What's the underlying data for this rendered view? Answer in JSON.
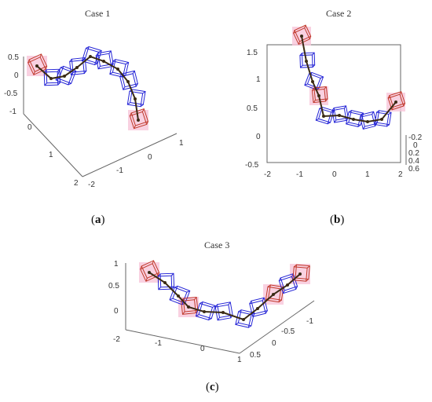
{
  "figure": {
    "panels": [
      {
        "title": "Case 1",
        "label_paren_open": "(",
        "label_letter": "a",
        "label_paren_close": ")",
        "zticks": [
          "0.5",
          "0",
          "-0.5",
          "-1"
        ],
        "xticks": [
          "0",
          "1",
          "2"
        ],
        "yticks": [
          "-2",
          "-1",
          "0",
          "1"
        ]
      },
      {
        "title": "Case 2",
        "label_paren_open": "(",
        "label_letter": "b",
        "label_paren_close": ")",
        "zticks": [
          "1.5",
          "1",
          "0.5",
          "0",
          "-0.5"
        ],
        "xticks": [
          "-2",
          "-1",
          "0",
          "1",
          "2"
        ],
        "yticks": [
          "-0.2",
          "0",
          "0.2",
          "0.4",
          "0.6"
        ]
      },
      {
        "title": "Case 3",
        "label_paren_open": "(",
        "label_letter": "c",
        "label_paren_close": ")",
        "zticks": [
          "1",
          "0.5",
          "0"
        ],
        "xticks": [
          "-2",
          "-1",
          "0",
          "1"
        ],
        "yticks": [
          "-1",
          "-0.5",
          "0",
          "0.5"
        ]
      }
    ],
    "colors": {
      "end_box": "#c0392b",
      "mid_box": "#2323d6",
      "backbone": "#3a2a14",
      "halo": "#f7c6da"
    }
  }
}
